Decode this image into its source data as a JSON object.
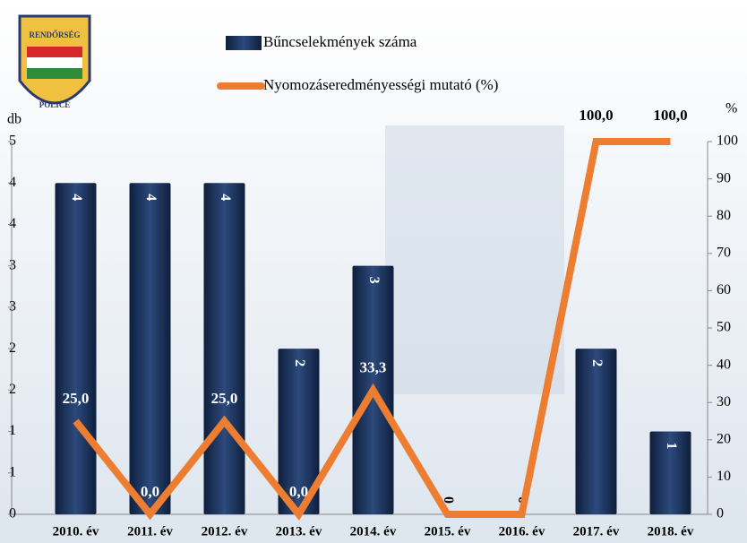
{
  "logo": {
    "top": "RENDŐRSÉG",
    "bottom": "POLICE"
  },
  "chart_data": {
    "type": "bar_line",
    "categories": [
      "2010. év",
      "2011. év",
      "2012. év",
      "2013. év",
      "2014. év",
      "2015. év",
      "2016. év",
      "2017. év",
      "2018. év"
    ],
    "series": [
      {
        "name": "Bűncselekmények száma",
        "color": "#1f3864",
        "type": "bar",
        "values": [
          4,
          4,
          4,
          2,
          3,
          0,
          0,
          2,
          1
        ]
      },
      {
        "name": "Nyomozáseredményességi mutató (%)",
        "color": "#ed7d31",
        "type": "line",
        "axis": "y2",
        "values": [
          25,
          0,
          25,
          0,
          33.3,
          0,
          0,
          100,
          100
        ],
        "value_labels": [
          "25,0",
          "0,0",
          "25,0",
          "0,0",
          "33,3",
          null,
          null,
          "100,0",
          "100,0"
        ]
      }
    ],
    "ylabel": "db",
    "y2label": "%",
    "ylim": [
      0,
      4.5
    ],
    "yticks": [
      0,
      {
        "value": 0.5,
        "label": "1"
      },
      1,
      {
        "value": 1.5,
        "label": "2"
      },
      2,
      {
        "value": 2.5,
        "label": "3"
      },
      3,
      {
        "value": 3.5,
        "label": "4"
      },
      4,
      {
        "value": 4.5,
        "label": "5"
      }
    ],
    "y2lim": [
      0,
      100
    ],
    "y2ticks": [
      0,
      10,
      20,
      30,
      40,
      50,
      60,
      70,
      80,
      90,
      100
    ]
  }
}
